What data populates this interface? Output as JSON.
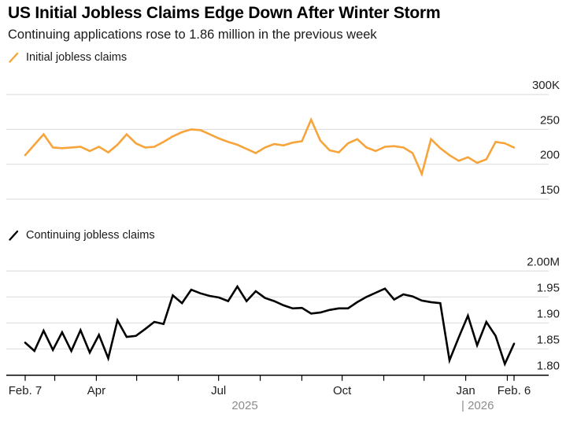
{
  "header": {
    "title": "US Initial Jobless Claims Edge Down After Winter Storm",
    "subtitle": "Continuing applications rose to 1.86 million in the previous week"
  },
  "legends": {
    "initial": "Initial jobless claims",
    "continuing": "Continuing jobless claims"
  },
  "colors": {
    "initial_line": "#F7A43B",
    "continuing_line": "#000000",
    "gridline": "#D9D9D9",
    "axis": "#000000",
    "label_text": "#1f1f1f",
    "year_text": "#8C8C8C",
    "background": "#FFFFFF"
  },
  "x_axis": {
    "tick_labels": [
      "Feb. 7",
      "",
      "Apr",
      "",
      "",
      "Jul",
      "",
      "",
      "Oct",
      "",
      "",
      "Jan",
      "",
      "Feb. 6"
    ],
    "tick_days": [
      0,
      22,
      53,
      83,
      114,
      144,
      175,
      206,
      236,
      267,
      297,
      328,
      359,
      364
    ],
    "total_days": 364,
    "year_left": "2025",
    "year_right": "| 2026"
  },
  "chart_data": [
    {
      "type": "line",
      "title": "Initial jobless claims",
      "unit": "thousands (K)",
      "ylim": [
        150,
        300
      ],
      "grid": true,
      "legend_position": "top-left",
      "yticks": [
        {
          "value": 300,
          "label": "300K"
        },
        {
          "value": 250,
          "label": "250"
        },
        {
          "value": 200,
          "label": "200"
        },
        {
          "value": 150,
          "label": "150"
        }
      ],
      "x_weekly_from": "Feb. 7, 2025",
      "x_weekly_to": "Feb. 6, 2026",
      "values": [
        213,
        228,
        243,
        224,
        223,
        224,
        225,
        219,
        225,
        217,
        228,
        243,
        230,
        224,
        225,
        232,
        240,
        246,
        250,
        249,
        243,
        237,
        232,
        228,
        222,
        216,
        224,
        229,
        227,
        231,
        233,
        264,
        234,
        220,
        217,
        230,
        236,
        224,
        219,
        225,
        226,
        224,
        216,
        186,
        236,
        223,
        213,
        205,
        210,
        202,
        207,
        232,
        230,
        224
      ]
    },
    {
      "type": "line",
      "title": "Continuing jobless claims",
      "unit": "millions (M)",
      "ylim": [
        1.8,
        2.0
      ],
      "grid": true,
      "legend_position": "top-left",
      "yticks": [
        {
          "value": 2.0,
          "label": "2.00M"
        },
        {
          "value": 1.95,
          "label": "1.95"
        },
        {
          "value": 1.9,
          "label": "1.90"
        },
        {
          "value": 1.85,
          "label": "1.85"
        },
        {
          "value": 1.8,
          "label": "1.80"
        }
      ],
      "x_weekly_from": "Feb. 7, 2025",
      "x_weekly_to": "Feb. 6, 2026",
      "values": [
        1.862,
        1.846,
        1.885,
        1.848,
        1.882,
        1.846,
        1.886,
        1.843,
        1.877,
        1.832,
        1.905,
        1.873,
        1.875,
        1.888,
        1.902,
        1.898,
        1.953,
        1.938,
        1.964,
        1.957,
        1.952,
        1.949,
        1.942,
        1.97,
        1.942,
        1.961,
        1.948,
        1.942,
        1.934,
        1.928,
        1.929,
        1.918,
        1.92,
        1.925,
        1.928,
        1.928,
        1.94,
        1.95,
        1.958,
        1.966,
        1.945,
        1.955,
        1.951,
        1.943,
        1.94,
        1.938,
        1.828,
        1.872,
        1.914,
        1.857,
        1.902,
        1.875,
        1.821,
        1.86
      ]
    }
  ]
}
